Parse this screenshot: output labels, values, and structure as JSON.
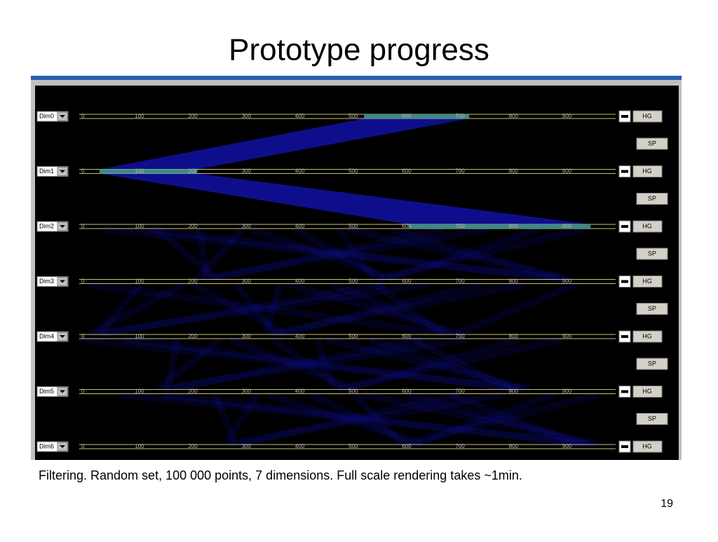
{
  "title": "Prototype progress",
  "app": {
    "dimensions": [
      {
        "label": "Dim0",
        "selection": [
          529,
          726
        ]
      },
      {
        "label": "Dim1",
        "selection": [
          34,
          216
        ]
      },
      {
        "label": "Dim2",
        "selection": [
          613,
          953
        ]
      },
      {
        "label": "Dim3"
      },
      {
        "label": "Dim4"
      },
      {
        "label": "Dim5"
      },
      {
        "label": "Dim6"
      }
    ],
    "ticks": [
      0,
      100,
      200,
      300,
      400,
      500,
      600,
      700,
      800,
      900
    ],
    "hg_button": "HG",
    "sp_button": "SP"
  },
  "caption": "Filtering. Random set, 100 000 points, 7 dimensions. Full scale rendering takes ~1min.",
  "page_number": "19"
}
